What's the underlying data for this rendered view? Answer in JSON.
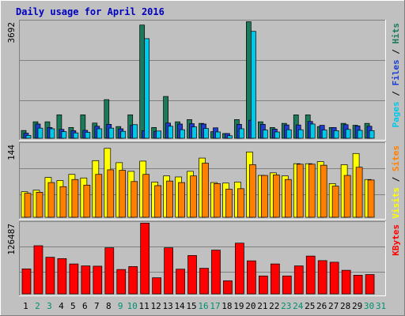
{
  "chart_data": [
    {
      "type": "bar",
      "title": "Daily usage for April 2016",
      "panel": "pages-files-hits",
      "y_max_label": "3692",
      "ylim": [
        0,
        3692
      ],
      "legend": [
        {
          "text": "Pages",
          "color": "#00c8e8"
        },
        {
          "text": "Files",
          "color": "#1e3cd0"
        },
        {
          "text": "Hits",
          "color": "#1a7a5a"
        }
      ],
      "series": [
        {
          "name": "Hits",
          "color": "#1a7a5a",
          "values": [
            245,
            520,
            520,
            740,
            340,
            740,
            480,
            1220,
            370,
            740,
            3575,
            340,
            1320,
            520,
            590,
            470,
            210,
            150,
            590,
            3680,
            520,
            340,
            470,
            740,
            740,
            370,
            340,
            470,
            410,
            470
          ]
        },
        {
          "name": "Files",
          "color": "#1e3cd0",
          "values": [
            160,
            450,
            340,
            280,
            240,
            250,
            380,
            440,
            300,
            410,
            240,
            220,
            480,
            450,
            460,
            450,
            330,
            150,
            440,
            570,
            440,
            290,
            420,
            420,
            530,
            410,
            340,
            430,
            390,
            380
          ]
        },
        {
          "name": "Pages",
          "color": "#00c8e8",
          "values": [
            90,
            320,
            300,
            210,
            170,
            190,
            300,
            320,
            220,
            430,
            3145,
            230,
            380,
            270,
            360,
            310,
            200,
            80,
            300,
            3375,
            260,
            200,
            270,
            270,
            450,
            260,
            240,
            280,
            250,
            240
          ]
        }
      ]
    },
    {
      "type": "bar",
      "panel": "visits-sites",
      "y_max_label": "144",
      "ylim": [
        0,
        144
      ],
      "legend": [
        {
          "text": "Visits",
          "color": "#ffff00"
        },
        {
          "text": "Sites",
          "color": "#ff8000"
        }
      ],
      "series": [
        {
          "name": "Visits",
          "color": "#ffff00",
          "values": [
            50,
            53,
            78,
            72,
            84,
            77,
            111,
            135,
            107,
            90,
            110,
            69,
            81,
            79,
            90,
            116,
            68,
            67,
            69,
            128,
            82,
            87,
            81,
            105,
            105,
            109,
            66,
            103,
            125,
            74
          ]
        },
        {
          "name": "Sites",
          "color": "#ff8000",
          "values": [
            47,
            49,
            68,
            60,
            74,
            63,
            84,
            93,
            92,
            70,
            84,
            62,
            71,
            68,
            81,
            106,
            66,
            55,
            56,
            103,
            82,
            83,
            74,
            104,
            104,
            102,
            61,
            82,
            98,
            73
          ]
        }
      ]
    },
    {
      "type": "bar",
      "panel": "kbytes",
      "y_max_label": "126487",
      "ylim": [
        0,
        126487
      ],
      "legend": [
        {
          "text": "KBytes",
          "color": "#ff0000"
        }
      ],
      "series": [
        {
          "name": "KBytes",
          "color": "#ff0000",
          "values": [
            44500,
            85700,
            65200,
            62800,
            53300,
            49800,
            49300,
            82000,
            43400,
            48600,
            126000,
            28700,
            82000,
            44000,
            68300,
            45600,
            77900,
            23300,
            90300,
            58800,
            31900,
            53300,
            31900,
            49800,
            67300,
            59200,
            56400,
            42000,
            33200,
            34400
          ]
        }
      ]
    }
  ],
  "days": [
    "1",
    "2",
    "3",
    "4",
    "5",
    "6",
    "7",
    "8",
    "9",
    "10",
    "11",
    "12",
    "13",
    "14",
    "15",
    "16",
    "17",
    "18",
    "19",
    "20",
    "21",
    "22",
    "23",
    "24",
    "25",
    "26",
    "27",
    "28",
    "29",
    "30",
    "31"
  ],
  "weekend_days": [
    2,
    3,
    9,
    10,
    16,
    17,
    23,
    24,
    30,
    31
  ]
}
